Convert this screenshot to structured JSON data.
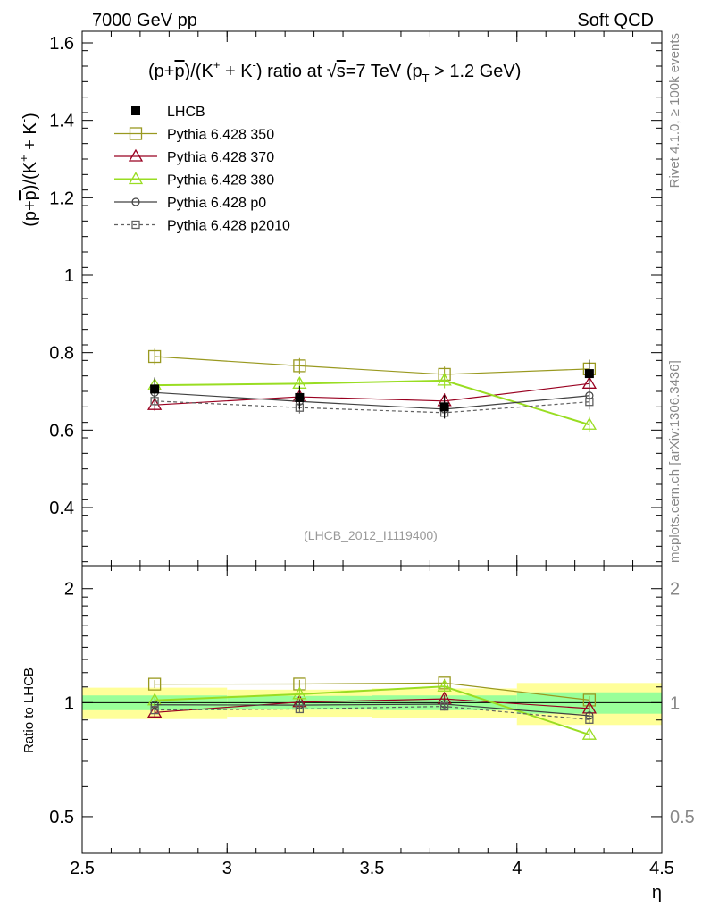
{
  "header": {
    "left": "7000 GeV pp",
    "right": "Soft QCD"
  },
  "side": {
    "rivet": "Rivet 4.1.0, ≥ 100k events",
    "mcplots": "mcplots.cern.ch [arXiv:1306.3436]"
  },
  "colors": {
    "lhcb": "#000000",
    "p350": "#999920",
    "p370": "#990020",
    "p380": "#99dd22",
    "p0": "#404040",
    "p2010": "#606060",
    "band_inner": "#99ff99",
    "band_outer": "#ffff99"
  },
  "chart_data": [
    {
      "type": "line",
      "title": "(p+p̅)/(K⁺ + K⁻) ratio at √s=7 TeV (p_T > 1.2 GeV)",
      "title_parts": {
        "t1": "(p+",
        "t2": "p",
        "t3": ")/(K",
        "t4": "+",
        "t5": " + K",
        "t6": "-",
        "t7": ") ratio at ",
        "t8": "√",
        "t9": "s",
        "t10": "=7 TeV (p",
        "t11": "T",
        "t12": " > 1.2 GeV)"
      },
      "ylabel_parts": {
        "a": "(p+",
        "b": "p",
        "c": ")/(K",
        "d": "+",
        "e": " + K",
        "f": "-",
        "g": ")"
      },
      "analysis_label": "(LHCB_2012_I1119400)",
      "xlim": [
        2.5,
        4.5
      ],
      "ylim": [
        0.25,
        1.63
      ],
      "yticks": [
        0.4,
        0.6,
        0.8,
        1.0,
        1.2,
        1.4,
        1.6
      ],
      "ytick_labels": [
        "0.4",
        "0.6",
        "0.8",
        "1",
        "1.2",
        "1.4",
        "1.6"
      ],
      "x": [
        2.75,
        3.25,
        3.75,
        4.25
      ],
      "series": [
        {
          "key": "lhcb",
          "name": "LHCB",
          "values": [
            0.706,
            0.684,
            0.66,
            0.746
          ],
          "errors": [
            0.03,
            0.03,
            0.03,
            0.035
          ]
        },
        {
          "key": "p350",
          "name": "Pythia 6.428 350",
          "values": [
            0.79,
            0.766,
            0.744,
            0.758
          ],
          "errors": [
            0.02,
            0.02,
            0.02,
            0.025
          ]
        },
        {
          "key": "p370",
          "name": "Pythia 6.428 370",
          "values": [
            0.665,
            0.686,
            0.675,
            0.72
          ],
          "errors": [
            0.015,
            0.015,
            0.02,
            0.02
          ]
        },
        {
          "key": "p380",
          "name": "Pythia 6.428 380",
          "values": [
            0.716,
            0.72,
            0.728,
            0.614
          ],
          "errors": [
            0.015,
            0.015,
            0.02,
            0.02
          ]
        },
        {
          "key": "p0",
          "name": "Pythia 6.428 p0",
          "values": [
            0.697,
            0.674,
            0.654,
            0.689
          ],
          "errors": [
            0.015,
            0.015,
            0.015,
            0.02
          ]
        },
        {
          "key": "p2010",
          "name": "Pythia 6.428 p2010",
          "values": [
            0.675,
            0.658,
            0.645,
            0.673
          ],
          "errors": [
            0.015,
            0.015,
            0.015,
            0.02
          ]
        }
      ],
      "legend": [
        "LHCB",
        "Pythia 6.428 350",
        "Pythia 6.428 370",
        "Pythia 6.428 380",
        "Pythia 6.428 p0",
        "Pythia 6.428 p2010"
      ],
      "legend_position": "top-left"
    },
    {
      "type": "line",
      "ylabel": "Ratio to LHCB",
      "xlabel": "η",
      "xlim": [
        2.5,
        4.5
      ],
      "ylim": [
        0.4,
        2.3
      ],
      "ylog": true,
      "yticks": [
        0.5,
        1.0,
        2.0
      ],
      "ytick_labels": [
        "0.5",
        "1",
        "2"
      ],
      "xticks": [
        2.5,
        3.0,
        3.5,
        4.0,
        4.5
      ],
      "xtick_labels": [
        "2.5",
        "3",
        "3.5",
        "4",
        "4.5"
      ],
      "x": [
        2.75,
        3.25,
        3.75,
        4.25
      ],
      "bands": [
        {
          "x0": 2.5,
          "x1": 3.0,
          "inner": [
            0.955,
            1.045
          ],
          "outer": [
            0.905,
            1.095
          ]
        },
        {
          "x0": 3.0,
          "x1": 3.5,
          "inner": [
            0.958,
            1.042
          ],
          "outer": [
            0.918,
            1.082
          ]
        },
        {
          "x0": 3.5,
          "x1": 4.0,
          "inner": [
            0.955,
            1.045
          ],
          "outer": [
            0.91,
            1.09
          ]
        },
        {
          "x0": 4.0,
          "x1": 4.5,
          "inner": [
            0.935,
            1.065
          ],
          "outer": [
            0.873,
            1.127
          ]
        }
      ],
      "series": [
        {
          "key": "p350",
          "values": [
            1.119,
            1.12,
            1.127,
            1.016
          ]
        },
        {
          "key": "p370",
          "values": [
            0.942,
            1.003,
            1.023,
            0.965
          ]
        },
        {
          "key": "p380",
          "values": [
            1.014,
            1.053,
            1.103,
            0.823
          ]
        },
        {
          "key": "p0",
          "values": [
            0.987,
            0.985,
            0.991,
            0.924
          ]
        },
        {
          "key": "p2010",
          "values": [
            0.956,
            0.962,
            0.977,
            0.902
          ]
        }
      ]
    }
  ]
}
